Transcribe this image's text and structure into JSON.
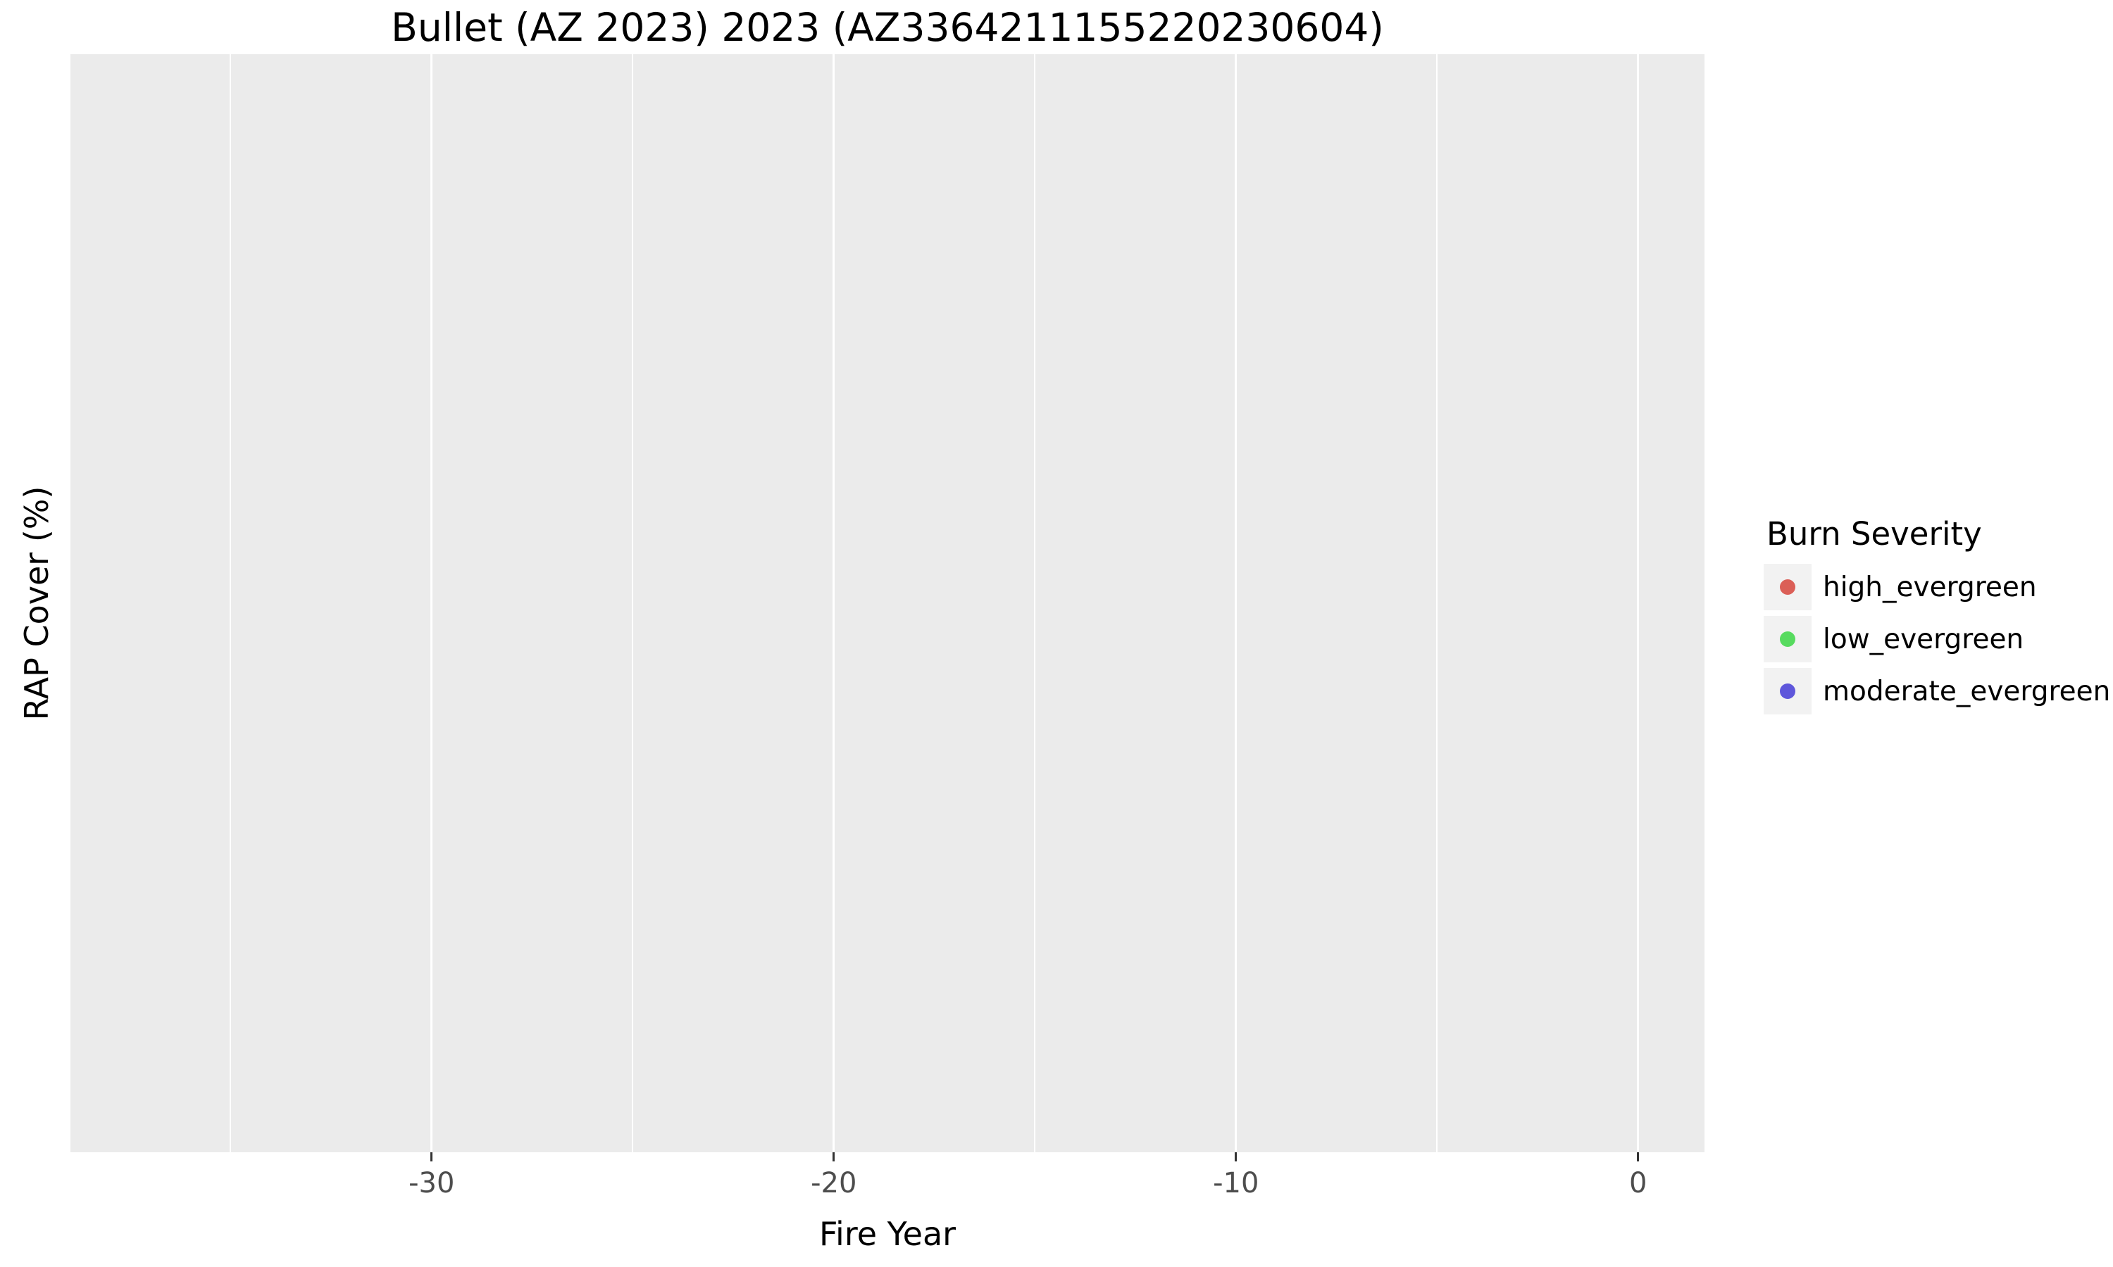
{
  "chart_data": {
    "type": "scatter",
    "title": "Bullet (AZ 2023) 2023 (AZ3364211155220230604)",
    "xlabel": "Fire Year",
    "ylabel": "RAP Cover (%)",
    "xlim": [
      -38.98,
      1.65
    ],
    "x_major_ticks": [
      -30,
      -20,
      -10,
      0
    ],
    "x_minor_ticks": [
      -35,
      -25,
      -15,
      -5
    ],
    "y_ticks": [],
    "grid": "vertical-only",
    "legend_position": "right",
    "legend_title": "Burn Severity",
    "series": [
      {
        "name": "high_evergreen",
        "color": "#DB5F57",
        "x": [],
        "y": []
      },
      {
        "name": "low_evergreen",
        "color": "#57DB5F",
        "x": [],
        "y": []
      },
      {
        "name": "moderate_evergreen",
        "color": "#5F57DB",
        "x": [],
        "y": []
      }
    ]
  },
  "colors": {
    "panel_background": "#EBEBEB",
    "gridline": "#FFFFFF",
    "tick_mark": "#333333",
    "tick_label": "#4D4D4D",
    "legend_key_background": "#F2F2F2",
    "text": "#000000",
    "figure_background": "#FFFFFF"
  }
}
